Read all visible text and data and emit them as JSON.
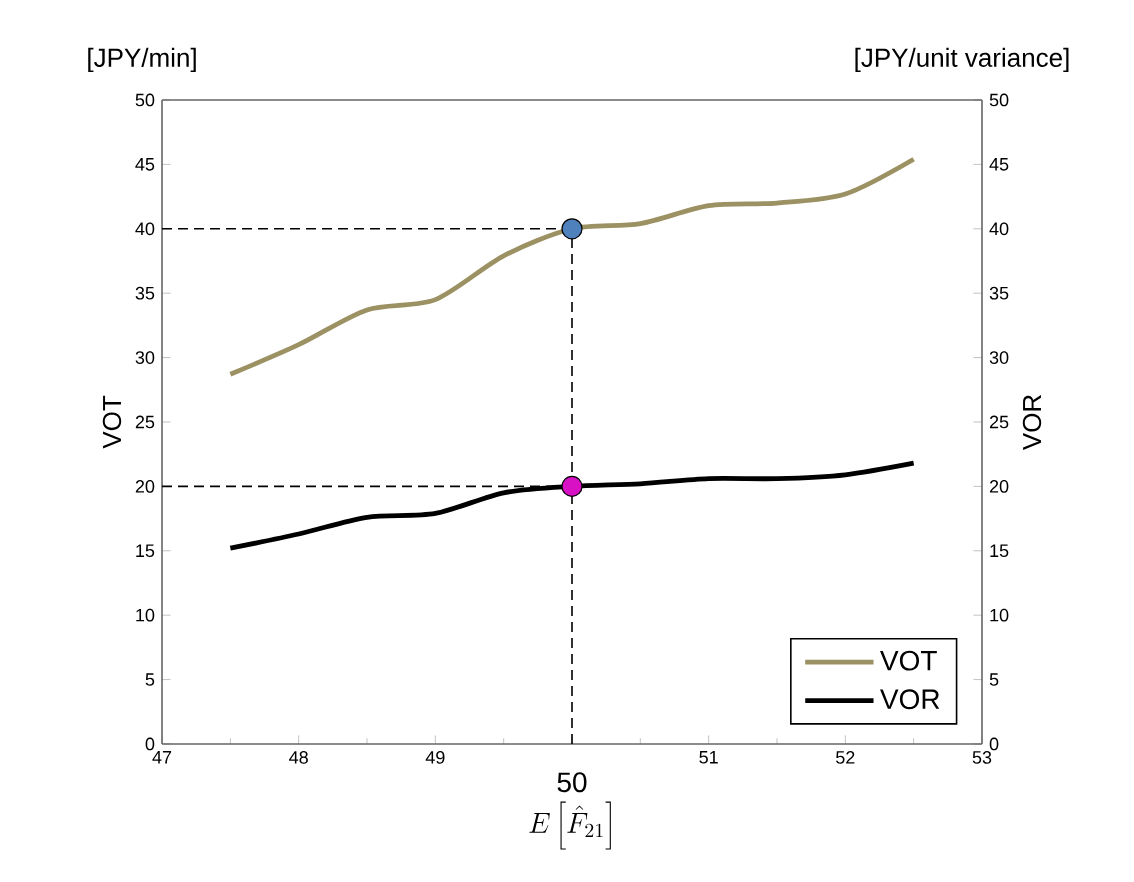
{
  "chart_data": {
    "type": "line",
    "xlabel": "E\\left[\\hat{F}_{21}\\right]",
    "ylabel": "VOT",
    "y2label": "VOR",
    "annotations": [
      "[JPY/min]",
      "[JPY/unit variance]"
    ],
    "xlim": [
      47,
      53
    ],
    "xticks": [
      47,
      48,
      49,
      {
        "value": 50,
        "label": null
      },
      51,
      52,
      53
    ],
    "ylim": [
      0,
      50
    ],
    "yticks": [
      0,
      5,
      10,
      15,
      20,
      25,
      30,
      35,
      40,
      45,
      50
    ],
    "y2lim": [
      0,
      50
    ],
    "y2ticks": [
      0,
      5,
      10,
      15,
      20,
      25,
      30,
      35,
      40,
      45,
      50
    ],
    "x": [
      47.5,
      48,
      48.5,
      49,
      49.5,
      50,
      50.5,
      51,
      51.5,
      52,
      52.5
    ],
    "series": [
      {
        "name": "VOT",
        "color": "#9c9163",
        "values": [
          28.7,
          31,
          33.7,
          34.5,
          37.9,
          40,
          40.4,
          41.8,
          42,
          42.7,
          45.4
        ]
      },
      {
        "name": "VOR",
        "color": "#000000",
        "axis": "y2",
        "values": [
          15.2,
          16.3,
          17.6,
          17.9,
          19.5,
          20,
          20.2,
          20.6,
          20.6,
          20.9,
          21.8
        ]
      },
      {
        "type": "scatter",
        "color": "#4f81bd",
        "x": [
          50
        ],
        "values": [
          40
        ]
      },
      {
        "type": "scatter",
        "color": "#d911c5",
        "x": [
          50
        ],
        "values": [
          20
        ],
        "axis": "y2"
      }
    ],
    "ref_lines": [
      {
        "axis": "x",
        "value": 50,
        "label": "50",
        "line_style": "dashed",
        "color": "#000000"
      },
      {
        "axis": "y",
        "value": 40,
        "line_style": "dashed",
        "color": "#000000"
      },
      {
        "axis": "y",
        "value": 20,
        "line_style": "dashed",
        "color": "#000000"
      }
    ],
    "legend": "bottom right",
    "grid": false
  }
}
